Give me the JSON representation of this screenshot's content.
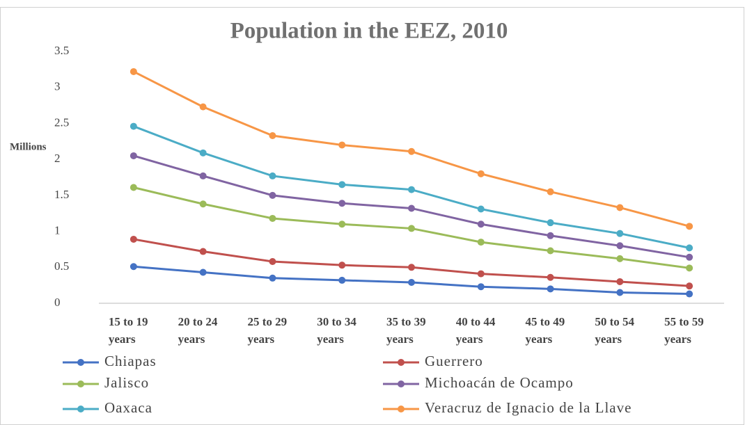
{
  "chart_data": {
    "type": "line",
    "title": "Population in the EEZ, 2010",
    "y_label": "Millions",
    "categories": [
      "15 to 19 years",
      "20 to 24 years",
      "25 to 29 years",
      "30 to 34 years",
      "35 to 39 years",
      "40 to 44 years",
      "45 to 49 years",
      "50 to 54 years",
      "55 to 59 years"
    ],
    "ylim": [
      0,
      3.5
    ],
    "yticks": [
      0,
      0.5,
      1,
      1.5,
      2,
      2.5,
      3,
      3.5
    ],
    "series": [
      {
        "name": "Chiapas",
        "color": "#4472c4",
        "values": [
          0.51,
          0.43,
          0.35,
          0.32,
          0.29,
          0.23,
          0.2,
          0.15,
          0.13
        ]
      },
      {
        "name": "Guerrero",
        "color": "#c0504d",
        "values": [
          0.89,
          0.72,
          0.58,
          0.53,
          0.5,
          0.41,
          0.36,
          0.3,
          0.24
        ]
      },
      {
        "name": "Jalisco",
        "color": "#9bbb59",
        "values": [
          1.61,
          1.38,
          1.18,
          1.1,
          1.04,
          0.85,
          0.73,
          0.62,
          0.49
        ]
      },
      {
        "name": "Michoacán de Ocampo",
        "color": "#8064a2",
        "values": [
          2.05,
          1.77,
          1.5,
          1.39,
          1.32,
          1.1,
          0.94,
          0.8,
          0.64
        ]
      },
      {
        "name": "Oaxaca",
        "color": "#4bacc6",
        "values": [
          2.46,
          2.09,
          1.77,
          1.65,
          1.58,
          1.31,
          1.12,
          0.97,
          0.77
        ]
      },
      {
        "name": "Veracruz de Ignacio de la Llave",
        "color": "#f79646",
        "values": [
          3.22,
          2.73,
          2.33,
          2.2,
          2.11,
          1.8,
          1.55,
          1.33,
          1.07
        ]
      }
    ]
  }
}
